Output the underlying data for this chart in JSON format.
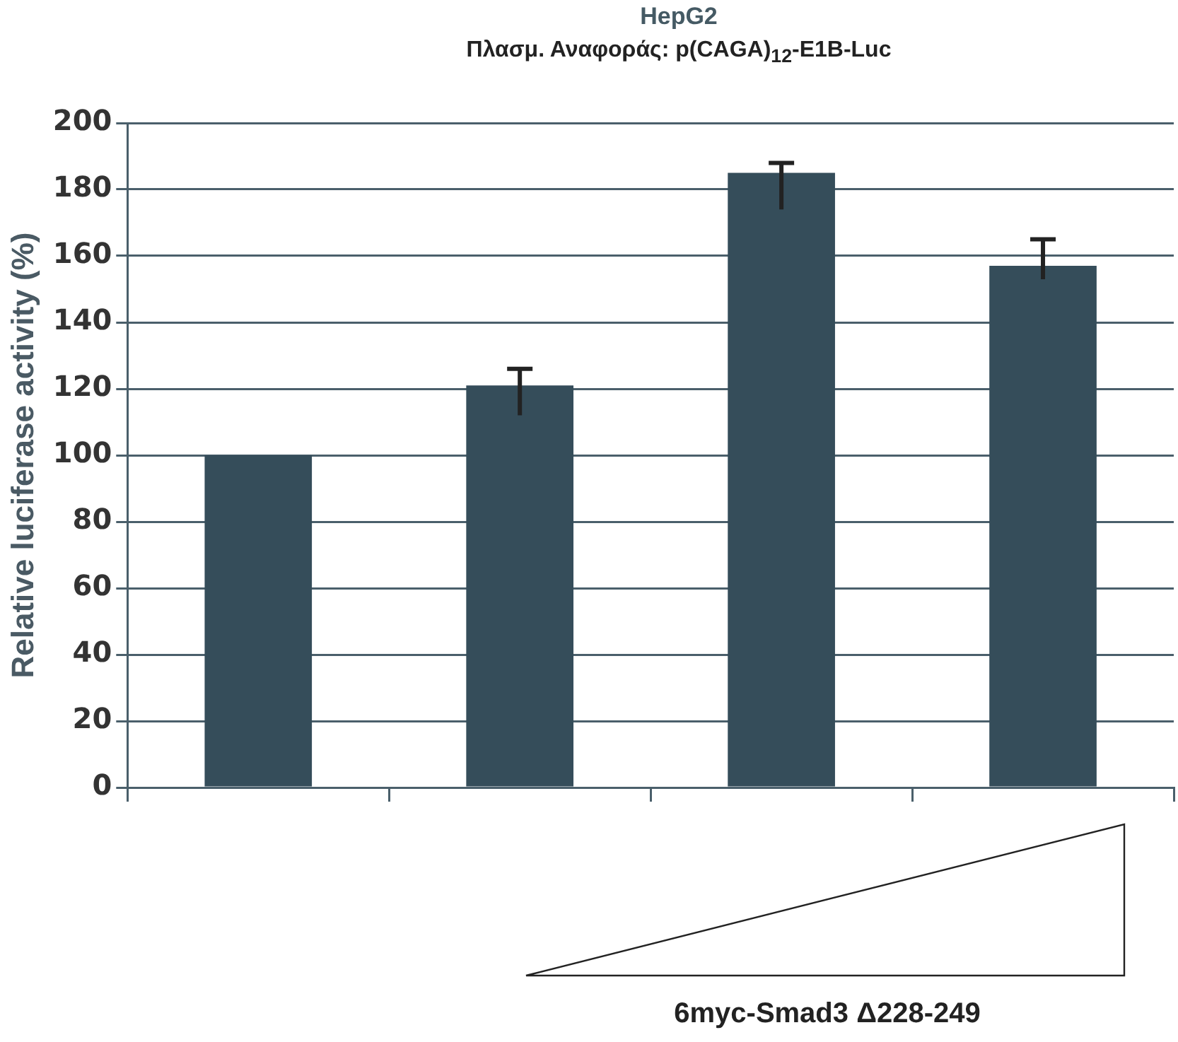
{
  "chart_data": {
    "type": "bar",
    "title": "HepG2",
    "subtitle": "Πλασμ. Αναφοράς: p(CAGA)$_{12}$-E1B-Luc",
    "ylabel": "Relative luciferase activity (%)",
    "annotations": [
      "6myc-Smad3 Δ228-249"
    ],
    "categories": [
      null,
      null,
      null,
      null
    ],
    "values": [
      100,
      121,
      185,
      157
    ],
    "errors": [
      null,
      [
        112,
        126
      ],
      [
        174,
        188
      ],
      [
        153,
        165
      ]
    ],
    "color": "#354d5a",
    "ylim": [
      0,
      200
    ],
    "yticks": [
      0,
      20,
      40,
      60,
      80,
      100,
      120,
      140,
      160,
      180,
      200
    ],
    "grid": "y",
    "legend": false
  }
}
